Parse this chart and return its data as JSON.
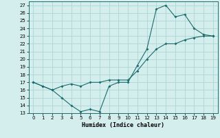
{
  "title": "",
  "xlabel": "Humidex (Indice chaleur)",
  "ylabel": "",
  "background_color": "#d4eeee",
  "grid_color": "#aed4d4",
  "line_color": "#1a6b6b",
  "xlim": [
    -0.5,
    19.5
  ],
  "ylim": [
    13,
    27.5
  ],
  "xticks": [
    0,
    1,
    2,
    3,
    4,
    5,
    6,
    7,
    8,
    9,
    10,
    11,
    12,
    13,
    14,
    15,
    16,
    17,
    18,
    19
  ],
  "yticks": [
    13,
    14,
    15,
    16,
    17,
    18,
    19,
    20,
    21,
    22,
    23,
    24,
    25,
    26,
    27
  ],
  "line1_x": [
    0,
    1,
    2,
    3,
    4,
    5,
    6,
    7,
    8,
    9,
    10,
    11,
    12,
    13,
    14,
    15,
    16,
    17,
    18,
    19
  ],
  "line1_y": [
    17.0,
    16.5,
    16.0,
    15.0,
    14.0,
    13.2,
    13.5,
    13.2,
    16.5,
    17.0,
    17.0,
    19.2,
    21.3,
    26.5,
    27.0,
    25.5,
    25.8,
    24.0,
    23.2,
    23.0
  ],
  "line2_x": [
    0,
    1,
    2,
    3,
    4,
    5,
    6,
    7,
    8,
    9,
    10,
    11,
    12,
    13,
    14,
    15,
    16,
    17,
    18,
    19
  ],
  "line2_y": [
    17.0,
    16.5,
    16.0,
    16.5,
    16.8,
    16.5,
    17.0,
    17.0,
    17.3,
    17.3,
    17.3,
    18.5,
    20.0,
    21.3,
    22.0,
    22.0,
    22.5,
    22.8,
    23.0,
    23.0
  ]
}
